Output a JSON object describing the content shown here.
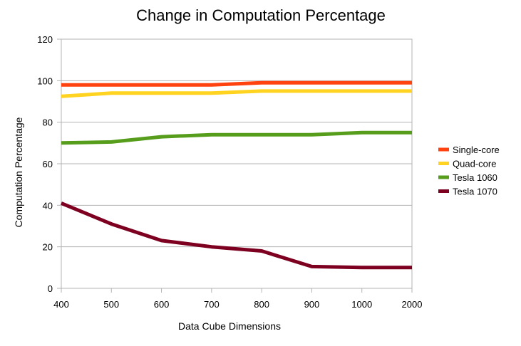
{
  "chart_data": {
    "type": "line",
    "title": "Change in Computation Percentage",
    "xlabel": "Data Cube Dimensions",
    "ylabel": "Computation Percentage",
    "categories": [
      "400",
      "500",
      "600",
      "700",
      "800",
      "900",
      "1000",
      "2000"
    ],
    "ylim": [
      0,
      120
    ],
    "yticks": [
      0,
      20,
      40,
      60,
      80,
      100,
      120
    ],
    "grid": true,
    "legend_position": "right",
    "series": [
      {
        "name": "Single-core",
        "color": "#ff420e",
        "values": [
          98,
          98,
          98,
          98,
          99,
          99,
          99,
          99
        ]
      },
      {
        "name": "Quad-core",
        "color": "#ffd320",
        "values": [
          92.5,
          94,
          94,
          94,
          95,
          95,
          95,
          95
        ]
      },
      {
        "name": "Tesla 1060",
        "color": "#579d1c",
        "values": [
          70,
          70.5,
          73,
          74,
          74,
          74,
          75,
          75
        ]
      },
      {
        "name": "Tesla 1070",
        "color": "#7e0021",
        "values": [
          41,
          31,
          23,
          20,
          18,
          10.5,
          10,
          10
        ]
      }
    ]
  }
}
